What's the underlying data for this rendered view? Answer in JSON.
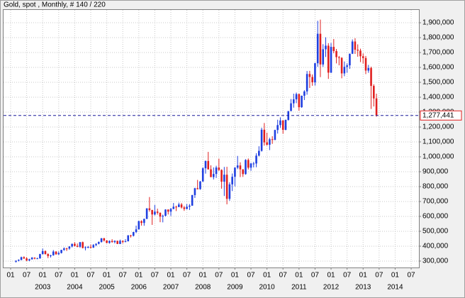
{
  "chart_data": {
    "type": "candlestick",
    "title": "Gold, spot , Monthly, # 140 / 220",
    "x": [
      "2002-03",
      "2002-04",
      "2002-05",
      "2002-06",
      "2002-07",
      "2002-08",
      "2002-09",
      "2002-10",
      "2002-11",
      "2002-12",
      "2003-01",
      "2003-02",
      "2003-03",
      "2003-04",
      "2003-05",
      "2003-06",
      "2003-07",
      "2003-08",
      "2003-09",
      "2003-10",
      "2003-11",
      "2003-12",
      "2004-01",
      "2004-02",
      "2004-03",
      "2004-04",
      "2004-05",
      "2004-06",
      "2004-07",
      "2004-08",
      "2004-09",
      "2004-10",
      "2004-11",
      "2004-12",
      "2005-01",
      "2005-02",
      "2005-03",
      "2005-04",
      "2005-05",
      "2005-06",
      "2005-07",
      "2005-08",
      "2005-09",
      "2005-10",
      "2005-11",
      "2005-12",
      "2006-01",
      "2006-02",
      "2006-03",
      "2006-04",
      "2006-05",
      "2006-06",
      "2006-07",
      "2006-08",
      "2006-09",
      "2006-10",
      "2006-11",
      "2006-12",
      "2007-01",
      "2007-02",
      "2007-03",
      "2007-04",
      "2007-05",
      "2007-06",
      "2007-07",
      "2007-08",
      "2007-09",
      "2007-10",
      "2007-11",
      "2007-12",
      "2008-01",
      "2008-02",
      "2008-03",
      "2008-04",
      "2008-05",
      "2008-06",
      "2008-07",
      "2008-08",
      "2008-09",
      "2008-10",
      "2008-11",
      "2008-12",
      "2009-01",
      "2009-02",
      "2009-03",
      "2009-04",
      "2009-05",
      "2009-06",
      "2009-07",
      "2009-08",
      "2009-09",
      "2009-10",
      "2009-11",
      "2009-12",
      "2010-01",
      "2010-02",
      "2010-03",
      "2010-04",
      "2010-05",
      "2010-06",
      "2010-07",
      "2010-08",
      "2010-09",
      "2010-10",
      "2010-11",
      "2010-12",
      "2011-01",
      "2011-02",
      "2011-03",
      "2011-04",
      "2011-05",
      "2011-06",
      "2011-07",
      "2011-08",
      "2011-09",
      "2011-10",
      "2011-11",
      "2011-12",
      "2012-01",
      "2012-02",
      "2012-03",
      "2012-04",
      "2012-05",
      "2012-06",
      "2012-07",
      "2012-08",
      "2012-09",
      "2012-10",
      "2012-11",
      "2012-12",
      "2013-01",
      "2013-02",
      "2013-03",
      "2013-04",
      "2013-05",
      "2013-06"
    ],
    "open": [
      296,
      302,
      308,
      326,
      318,
      304,
      312,
      323,
      317,
      318,
      347,
      367,
      347,
      334,
      339,
      364,
      346,
      354,
      375,
      385,
      384,
      398,
      416,
      402,
      396,
      427,
      388,
      393,
      395,
      391,
      408,
      416,
      428,
      453,
      438,
      422,
      435,
      428,
      436,
      415,
      436,
      429,
      433,
      473,
      470,
      495,
      513,
      568,
      556,
      583,
      654,
      643,
      613,
      632,
      624,
      599,
      604,
      646,
      632,
      650,
      665,
      663,
      680,
      660,
      650,
      665,
      672,
      743,
      789,
      783,
      834,
      923,
      972,
      916,
      864,
      885,
      928,
      912,
      833,
      880,
      718,
      815,
      866,
      927,
      942,
      916,
      884,
      979,
      927,
      955,
      955,
      1008,
      1040,
      1182,
      1097,
      1081,
      1118,
      1113,
      1180,
      1213,
      1244,
      1181,
      1248,
      1307,
      1359,
      1386,
      1421,
      1333,
      1410,
      1439,
      1556,
      1536,
      1500,
      1628,
      1826,
      1620,
      1722,
      1746,
      1565,
      1738,
      1710,
      1669,
      1664,
      1560,
      1604,
      1614,
      1692,
      1774,
      1719,
      1713,
      1675,
      1663,
      1579,
      1596,
      1476,
      1392
    ],
    "high": [
      305,
      312,
      330,
      332,
      326,
      316,
      327,
      325,
      323,
      349,
      384,
      372,
      352,
      342,
      374,
      366,
      365,
      376,
      392,
      389,
      400,
      417,
      427,
      418,
      428,
      431,
      399,
      401,
      411,
      414,
      419,
      432,
      455,
      456,
      440,
      439,
      447,
      439,
      437,
      444,
      438,
      447,
      474,
      476,
      496,
      538,
      572,
      574,
      585,
      655,
      730,
      644,
      677,
      652,
      627,
      612,
      648,
      647,
      657,
      690,
      672,
      692,
      690,
      670,
      683,
      683,
      745,
      792,
      845,
      838,
      930,
      975,
      1033,
      943,
      929,
      940,
      988,
      916,
      932,
      933,
      829,
      888,
      931,
      1006,
      963,
      917,
      984,
      989,
      960,
      966,
      1024,
      1071,
      1195,
      1227,
      1162,
      1128,
      1138,
      1182,
      1249,
      1265,
      1247,
      1250,
      1307,
      1388,
      1424,
      1431,
      1424,
      1411,
      1447,
      1576,
      1577,
      1553,
      1632,
      1913,
      1921,
      1756,
      1802,
      1763,
      1764,
      1791,
      1724,
      1677,
      1669,
      1640,
      1627,
      1693,
      1788,
      1796,
      1755,
      1726,
      1694,
      1677,
      1617,
      1605,
      1487,
      1424
    ],
    "low": [
      290,
      298,
      305,
      314,
      300,
      299,
      310,
      312,
      314,
      316,
      344,
      344,
      320,
      324,
      336,
      342,
      341,
      351,
      369,
      368,
      376,
      392,
      399,
      393,
      389,
      385,
      372,
      386,
      385,
      388,
      400,
      412,
      424,
      431,
      419,
      417,
      423,
      419,
      414,
      414,
      418,
      426,
      432,
      458,
      465,
      488,
      512,
      538,
      537,
      582,
      632,
      543,
      606,
      612,
      561,
      560,
      600,
      613,
      603,
      648,
      636,
      662,
      653,
      637,
      647,
      643,
      671,
      724,
      781,
      779,
      832,
      887,
      914,
      863,
      848,
      858,
      905,
      786,
      737,
      681,
      705,
      770,
      802,
      917,
      864,
      865,
      880,
      915,
      906,
      929,
      930,
      1003,
      1035,
      1075,
      1075,
      1045,
      1087,
      1112,
      1156,
      1194,
      1155,
      1178,
      1243,
      1307,
      1330,
      1360,
      1309,
      1329,
      1381,
      1417,
      1462,
      1477,
      1478,
      1604,
      1535,
      1604,
      1670,
      1523,
      1563,
      1695,
      1627,
      1614,
      1527,
      1541,
      1564,
      1590,
      1690,
      1691,
      1672,
      1636,
      1626,
      1555,
      1564,
      1321,
      1338,
      1269
    ],
    "close": [
      302,
      308,
      326,
      318,
      304,
      312,
      323,
      317,
      318,
      347,
      367,
      347,
      334,
      339,
      364,
      346,
      354,
      375,
      385,
      384,
      398,
      416,
      402,
      396,
      427,
      388,
      393,
      395,
      391,
      408,
      416,
      428,
      453,
      438,
      422,
      435,
      428,
      436,
      415,
      436,
      429,
      433,
      473,
      470,
      495,
      513,
      568,
      556,
      583,
      654,
      643,
      613,
      632,
      624,
      599,
      604,
      646,
      632,
      650,
      665,
      663,
      680,
      660,
      650,
      665,
      672,
      743,
      789,
      783,
      834,
      923,
      972,
      916,
      864,
      885,
      928,
      912,
      833,
      880,
      718,
      815,
      866,
      927,
      942,
      916,
      884,
      979,
      927,
      955,
      955,
      1008,
      1040,
      1182,
      1097,
      1081,
      1118,
      1113,
      1180,
      1213,
      1244,
      1181,
      1248,
      1307,
      1359,
      1386,
      1421,
      1333,
      1410,
      1439,
      1556,
      1536,
      1500,
      1628,
      1826,
      1620,
      1722,
      1746,
      1565,
      1738,
      1710,
      1669,
      1664,
      1560,
      1604,
      1614,
      1692,
      1774,
      1719,
      1713,
      1675,
      1663,
      1579,
      1596,
      1476,
      1392,
      1277.441
    ],
    "up_color": "#1f3fe0",
    "down_color": "#e01f1f",
    "last_price": {
      "value": 1277.441,
      "label": "1,277,441"
    },
    "ylim": [
      257,
      1986
    ],
    "yticks": [
      {
        "value": 300,
        "label": "300,000"
      },
      {
        "value": 400,
        "label": "400,000"
      },
      {
        "value": 500,
        "label": "500,000"
      },
      {
        "value": 600,
        "label": "600,000"
      },
      {
        "value": 700,
        "label": "700,000"
      },
      {
        "value": 800,
        "label": "800,000"
      },
      {
        "value": 900,
        "label": "900,000"
      },
      {
        "value": 1000,
        "label": "1,000,000"
      },
      {
        "value": 1100,
        "label": "1,100,000"
      },
      {
        "value": 1200,
        "label": "1,200,000"
      },
      {
        "value": 1300,
        "label": "1,300,000"
      },
      {
        "value": 1400,
        "label": "1,400,000"
      },
      {
        "value": 1500,
        "label": "1,500,000"
      },
      {
        "value": 1600,
        "label": "1,600,000"
      },
      {
        "value": 1700,
        "label": "1,700,000"
      },
      {
        "value": 1800,
        "label": "1,800,000"
      },
      {
        "value": 1900,
        "label": "1,900,000"
      }
    ],
    "xticks": [
      {
        "value": "2002-01",
        "label": "01"
      },
      {
        "value": "2002-07",
        "label": "07"
      },
      {
        "value": "2003-01",
        "label": "01"
      },
      {
        "value": "2003-07",
        "label": "07"
      },
      {
        "value": "2004-01",
        "label": "01"
      },
      {
        "value": "2004-07",
        "label": "07"
      },
      {
        "value": "2005-01",
        "label": "01"
      },
      {
        "value": "2005-07",
        "label": "07"
      },
      {
        "value": "2006-01",
        "label": "01"
      },
      {
        "value": "2006-07",
        "label": "07"
      },
      {
        "value": "2007-01",
        "label": "01"
      },
      {
        "value": "2007-07",
        "label": "07"
      },
      {
        "value": "2008-01",
        "label": "01"
      },
      {
        "value": "2008-07",
        "label": "07"
      },
      {
        "value": "2009-01",
        "label": "01"
      },
      {
        "value": "2009-07",
        "label": "07"
      },
      {
        "value": "2010-01",
        "label": "01"
      },
      {
        "value": "2010-07",
        "label": "07"
      },
      {
        "value": "2011-01",
        "label": "01"
      },
      {
        "value": "2011-07",
        "label": "07"
      },
      {
        "value": "2012-01",
        "label": "01"
      },
      {
        "value": "2012-07",
        "label": "07"
      },
      {
        "value": "2013-01",
        "label": "01"
      },
      {
        "value": "2013-07",
        "label": "07"
      },
      {
        "value": "2014-01",
        "label": "01"
      },
      {
        "value": "2014-07",
        "label": "07"
      }
    ],
    "xyears": [
      {
        "value": "2003-01",
        "label": "2003"
      },
      {
        "value": "2004-01",
        "label": "2004"
      },
      {
        "value": "2005-01",
        "label": "2005"
      },
      {
        "value": "2006-01",
        "label": "2006"
      },
      {
        "value": "2007-01",
        "label": "2007"
      },
      {
        "value": "2008-01",
        "label": "2008"
      },
      {
        "value": "2009-01",
        "label": "2009"
      },
      {
        "value": "2010-01",
        "label": "2010"
      },
      {
        "value": "2011-01",
        "label": "2011"
      },
      {
        "value": "2012-01",
        "label": "2012"
      },
      {
        "value": "2013-01",
        "label": "2013"
      },
      {
        "value": "2014-01",
        "label": "2014"
      }
    ],
    "grid": true
  }
}
